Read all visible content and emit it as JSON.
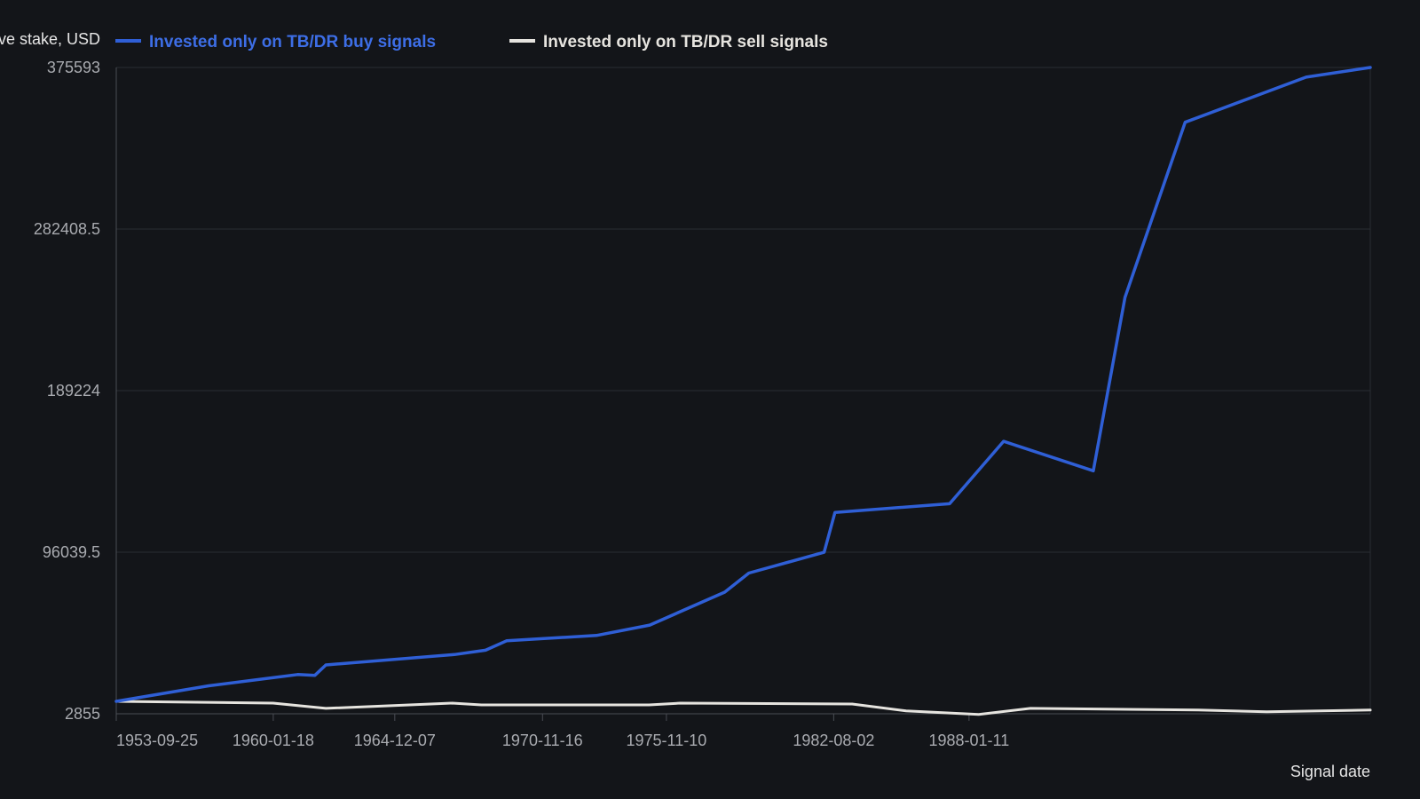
{
  "chart_data": {
    "type": "line",
    "ylabel": "Relative stake, USD",
    "xlabel": "Signal date",
    "ylim": [
      2855,
      375593
    ],
    "y_ticks": [
      "2855",
      "96039.5",
      "189224",
      "282408.5",
      "375593"
    ],
    "x_ticks": [
      {
        "date": "1953-09-25",
        "label": "1953-09-25"
      },
      {
        "date": "1960-01-18",
        "label": "1960-01-18"
      },
      {
        "date": "1964-12-07",
        "label": "1964-12-07"
      },
      {
        "date": "1970-11-16",
        "label": "1970-11-16"
      },
      {
        "date": "1975-11-10",
        "label": "1975-11-10"
      },
      {
        "date": "1982-08-02",
        "label": "1982-08-02"
      },
      {
        "date": "1988-01-11",
        "label": "1988-01-11"
      }
    ],
    "grid": true,
    "legend_position": "top-left",
    "series": [
      {
        "name": "Invested only on TB/DR buy signals",
        "color": "#2f5fd6",
        "points": [
          [
            "1953-09-25",
            10000
          ],
          [
            "1957-06-15",
            19000
          ],
          [
            "1961-01-10",
            25500
          ],
          [
            "1961-09-20",
            25000
          ],
          [
            "1962-03-01",
            31000
          ],
          [
            "1967-05-01",
            37000
          ],
          [
            "1968-08-01",
            39500
          ],
          [
            "1969-06-10",
            45000
          ],
          [
            "1973-01-15",
            48000
          ],
          [
            "1975-03-10",
            54000
          ],
          [
            "1978-03-15",
            73000
          ],
          [
            "1979-03-05",
            84000
          ],
          [
            "1982-03-15",
            96000
          ],
          [
            "1982-08-20",
            119000
          ],
          [
            "1987-04-01",
            124000
          ],
          [
            "1989-06-01",
            160000
          ],
          [
            "1993-01-10",
            143000
          ],
          [
            "1994-04-20",
            243000
          ],
          [
            "1996-09-20",
            344000
          ],
          [
            "2001-08-01",
            370000
          ],
          [
            "2004-03-01",
            375593
          ]
        ]
      },
      {
        "name": "Invested only on TB/DR sell signals",
        "color": "#e6e4df",
        "points": [
          [
            "1953-09-25",
            10000
          ],
          [
            "1960-01-15",
            9000
          ],
          [
            "1962-03-01",
            6000
          ],
          [
            "1967-04-01",
            9000
          ],
          [
            "1968-06-01",
            8000
          ],
          [
            "1975-03-01",
            8000
          ],
          [
            "1976-06-01",
            9000
          ],
          [
            "1983-05-01",
            8500
          ],
          [
            "1985-07-01",
            4500
          ],
          [
            "1988-06-01",
            2500
          ],
          [
            "1990-07-01",
            6000
          ],
          [
            "1997-04-01",
            5000
          ],
          [
            "2000-01-01",
            4000
          ],
          [
            "2004-03-01",
            5000
          ]
        ]
      }
    ]
  }
}
